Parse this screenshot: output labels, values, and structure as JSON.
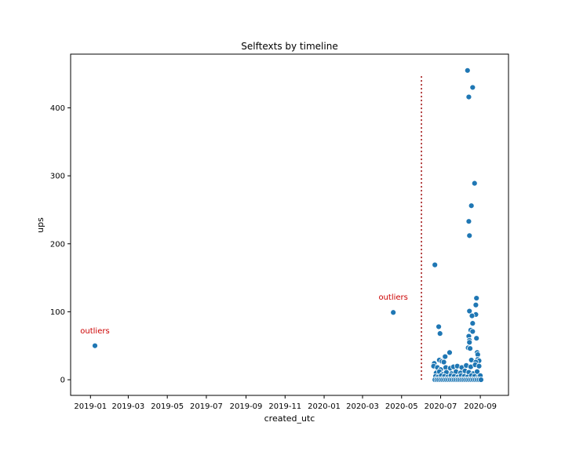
{
  "chart_data": {
    "type": "scatter",
    "title": "Selftexts by timeline",
    "xlabel": "created_utc",
    "ylabel": "ups",
    "x_type": "date",
    "xlim": [
      "2018-12-01",
      "2020-10-15"
    ],
    "ylim": [
      -23,
      479
    ],
    "x_ticks": [
      "2019-01",
      "2019-03",
      "2019-05",
      "2019-07",
      "2019-09",
      "2019-11",
      "2020-01",
      "2020-03",
      "2020-05",
      "2020-07",
      "2020-09"
    ],
    "y_ticks": [
      0,
      100,
      200,
      300,
      400
    ],
    "grid": false,
    "legend": "none",
    "colors": {
      "point": "#1f77b4",
      "point_edge": "#ffffff",
      "annotation": "#cc0000",
      "axis": "#000000"
    },
    "series": [
      {
        "points": [
          [
            "2019-01-08",
            50
          ],
          [
            "2020-04-18",
            99
          ],
          [
            "2020-06-22",
            169
          ],
          [
            "2020-06-28",
            78
          ],
          [
            "2020-06-30",
            68
          ],
          [
            "2020-06-29",
            29
          ],
          [
            "2020-07-15",
            40
          ],
          [
            "2020-07-08",
            34
          ],
          [
            "2020-07-03",
            27
          ],
          [
            "2020-07-06",
            26
          ],
          [
            "2020-08-12",
            455
          ],
          [
            "2020-08-20",
            430
          ],
          [
            "2020-08-14",
            416
          ],
          [
            "2020-08-23",
            289
          ],
          [
            "2020-08-18",
            256
          ],
          [
            "2020-08-14",
            233
          ],
          [
            "2020-08-15",
            212
          ],
          [
            "2020-08-26",
            120
          ],
          [
            "2020-08-25",
            110
          ],
          [
            "2020-08-15",
            101
          ],
          [
            "2020-08-25",
            96
          ],
          [
            "2020-08-19",
            94
          ],
          [
            "2020-08-20",
            83
          ],
          [
            "2020-08-17",
            73
          ],
          [
            "2020-08-20",
            71
          ],
          [
            "2020-08-14",
            64
          ],
          [
            "2020-08-15",
            58
          ],
          [
            "2020-08-26",
            61
          ],
          [
            "2020-08-15",
            55
          ],
          [
            "2020-08-13",
            47
          ],
          [
            "2020-08-16",
            46
          ],
          [
            "2020-08-27",
            40
          ],
          [
            "2020-08-28",
            37
          ],
          [
            "2020-08-28",
            30
          ],
          [
            "2020-08-30",
            28
          ],
          [
            "2020-08-18",
            29
          ],
          [
            "2020-08-25",
            26
          ],
          [
            "2020-06-21",
            24
          ],
          [
            "2020-06-20",
            20
          ],
          [
            "2020-06-26",
            18
          ],
          [
            "2020-07-01",
            15
          ],
          [
            "2020-07-09",
            18
          ],
          [
            "2020-07-16",
            17
          ],
          [
            "2020-07-21",
            19
          ],
          [
            "2020-07-27",
            20
          ],
          [
            "2020-08-03",
            18
          ],
          [
            "2020-08-10",
            21
          ],
          [
            "2020-08-17",
            19
          ],
          [
            "2020-08-24",
            22
          ],
          [
            "2020-08-30",
            20
          ],
          [
            "2020-06-24",
            10
          ],
          [
            "2020-06-29",
            12
          ],
          [
            "2020-07-04",
            8
          ],
          [
            "2020-07-10",
            11
          ],
          [
            "2020-07-18",
            9
          ],
          [
            "2020-07-25",
            12
          ],
          [
            "2020-08-01",
            10
          ],
          [
            "2020-08-08",
            13
          ],
          [
            "2020-08-14",
            11
          ],
          [
            "2020-08-21",
            9
          ],
          [
            "2020-08-27",
            12
          ],
          [
            "2020-06-23",
            5
          ],
          [
            "2020-06-27",
            4
          ],
          [
            "2020-07-02",
            6
          ],
          [
            "2020-07-07",
            5
          ],
          [
            "2020-07-12",
            4
          ],
          [
            "2020-07-17",
            6
          ],
          [
            "2020-07-22",
            5
          ],
          [
            "2020-07-28",
            4
          ],
          [
            "2020-08-02",
            6
          ],
          [
            "2020-08-07",
            5
          ],
          [
            "2020-08-12",
            4
          ],
          [
            "2020-08-18",
            6
          ],
          [
            "2020-08-23",
            5
          ],
          [
            "2020-08-29",
            4
          ],
          [
            "2020-09-01",
            6
          ],
          [
            "2020-06-22",
            0
          ],
          [
            "2020-06-25",
            0
          ],
          [
            "2020-06-28",
            0
          ],
          [
            "2020-07-01",
            0
          ],
          [
            "2020-07-04",
            0
          ],
          [
            "2020-07-07",
            0
          ],
          [
            "2020-07-10",
            0
          ],
          [
            "2020-07-13",
            0
          ],
          [
            "2020-07-16",
            0
          ],
          [
            "2020-07-19",
            0
          ],
          [
            "2020-07-22",
            0
          ],
          [
            "2020-07-25",
            0
          ],
          [
            "2020-07-28",
            0
          ],
          [
            "2020-07-31",
            0
          ],
          [
            "2020-08-03",
            0
          ],
          [
            "2020-08-06",
            0
          ],
          [
            "2020-08-09",
            0
          ],
          [
            "2020-08-12",
            0
          ],
          [
            "2020-08-15",
            0
          ],
          [
            "2020-08-18",
            0
          ],
          [
            "2020-08-21",
            0
          ],
          [
            "2020-08-24",
            0
          ],
          [
            "2020-08-27",
            0
          ],
          [
            "2020-08-30",
            0
          ],
          [
            "2020-09-02",
            0
          ]
        ]
      }
    ],
    "vline": {
      "x": "2020-06-01",
      "y_range": [
        0,
        450
      ],
      "style": "dotted",
      "color": "#990000"
    },
    "annotations": [
      {
        "text": "outliers",
        "x": "2019-01-08",
        "y": 68
      },
      {
        "text": "outliers",
        "x": "2020-04-18",
        "y": 118
      }
    ]
  }
}
